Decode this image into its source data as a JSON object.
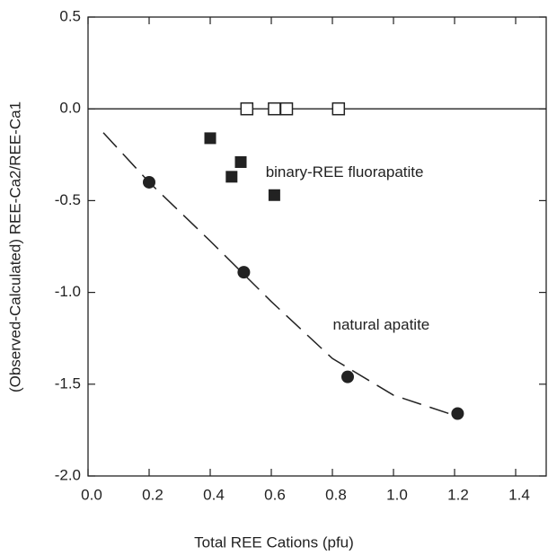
{
  "chart_data": {
    "type": "scatter",
    "xlabel": "Total REE Cations (pfu)",
    "ylabel": "(Observed-Calculated) REE-Ca2/REE-Ca1",
    "xlim": [
      0,
      1.5
    ],
    "ylim": [
      -2,
      0.5
    ],
    "xticks": [
      {
        "value": 0,
        "label": "0.0"
      },
      0.2,
      0.4,
      0.6,
      0.8,
      {
        "value": 1,
        "label": "1.0"
      },
      1.2,
      1.4
    ],
    "yticks": [
      0.5,
      {
        "value": 0,
        "label": "0.0"
      },
      -0.5,
      {
        "value": -1,
        "label": "-1.0"
      },
      -1.5,
      {
        "value": -2,
        "label": "-2.0"
      }
    ],
    "hline": 0,
    "series": [
      {
        "marker": "open-square",
        "color": "#222222",
        "x": [
          0.52,
          0.61,
          0.65,
          0.82
        ],
        "values": [
          0,
          0,
          0,
          0
        ]
      },
      {
        "marker": "square",
        "color": "#222222",
        "x": [
          0.4,
          0.5,
          0.47,
          0.61
        ],
        "values": [
          -0.16,
          -0.29,
          -0.37,
          -0.47
        ]
      },
      {
        "marker": "circle",
        "color": "#222222",
        "x": [
          0.2,
          0.51,
          0.85,
          1.21
        ],
        "values": [
          -0.4,
          -0.89,
          -1.46,
          -1.66
        ]
      }
    ],
    "fit_line": {
      "color": "#222222",
      "dash": true,
      "x": [
        0.05,
        0.2,
        0.4,
        0.6,
        0.8,
        1.0,
        1.2
      ],
      "values": [
        -0.13,
        -0.4,
        -0.72,
        -1.05,
        -1.36,
        -1.56,
        -1.67
      ]
    },
    "annotations": [
      {
        "text": "binary-REE fluorapatite",
        "x": 0.84,
        "y": -0.35
      },
      {
        "text": "natural apatite",
        "x": 0.96,
        "y": -1.18
      }
    ]
  }
}
